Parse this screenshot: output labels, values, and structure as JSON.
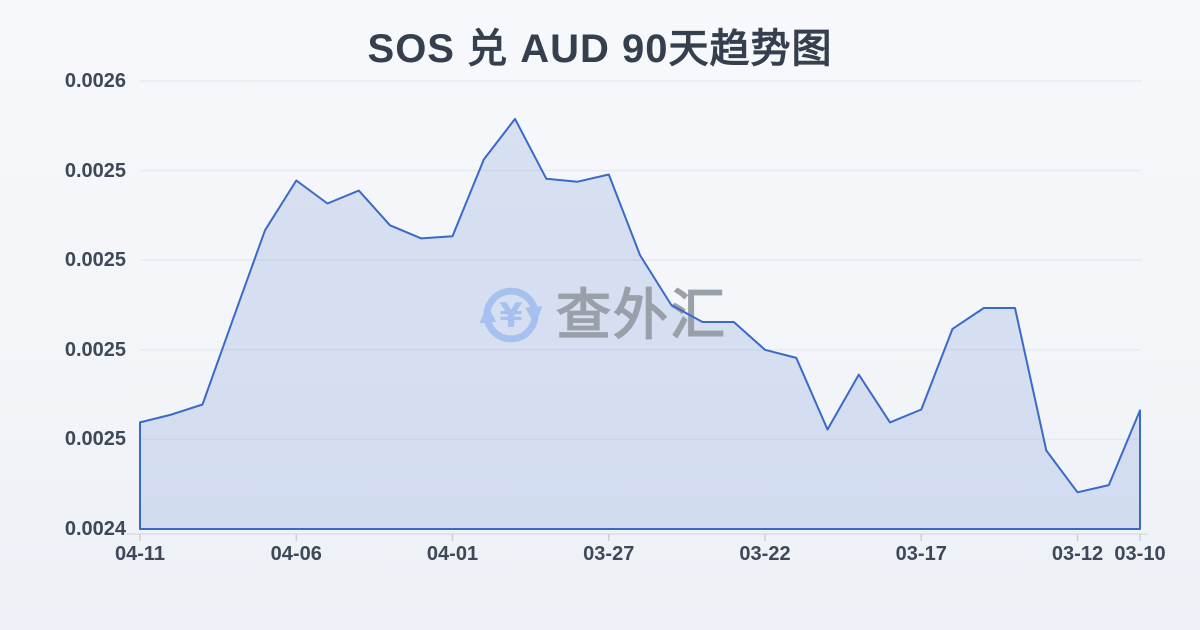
{
  "title": "SOS 兑 AUD 90天趋势图",
  "watermark": {
    "text": "查外汇",
    "icon": "currency-exchange-refresh-icon",
    "icon_symbol": "¥",
    "icon_color": "#a6c1ef",
    "text_color": "#99a0aa"
  },
  "colors": {
    "background_top": "#f7f8fb",
    "background_bottom": "#edf0f6",
    "title_text": "#353f4d",
    "axis_label_text": "#3e4856",
    "line": "#3a6ac8",
    "area_fill": "rgba(60,104,197,0.16)",
    "gridline": "#e6e9ef",
    "axis_line": "#dcdfe6",
    "tick_mark": "#c9ced6"
  },
  "chart_data": {
    "type": "area",
    "title": "SOS 兑 AUD 90天趋势图",
    "xlabel": "",
    "ylabel": "",
    "grid": true,
    "legend": "none",
    "x_reversed_chronology": true,
    "x": [
      "04-11",
      "04-10",
      "04-09",
      "04-08",
      "04-07",
      "04-06",
      "04-05",
      "04-04",
      "04-03",
      "04-02",
      "04-01",
      "03-31",
      "03-30",
      "03-29",
      "03-28",
      "03-27",
      "03-26",
      "03-25",
      "03-24",
      "03-23",
      "03-22",
      "03-21",
      "03-20",
      "03-19",
      "03-18",
      "03-17",
      "03-16",
      "03-15",
      "03-14",
      "03-13",
      "03-12",
      "03-11",
      "03-10"
    ],
    "values": [
      0.0024657,
      0.0024683,
      0.0024717,
      0.002501,
      0.00253,
      0.0025467,
      0.002539,
      0.0025433,
      0.0025317,
      0.0025273,
      0.002528,
      0.0025537,
      0.0025673,
      0.0025473,
      0.0025463,
      0.0025487,
      0.0025217,
      0.002505,
      0.0024993,
      0.0024993,
      0.00249,
      0.0024873,
      0.0024633,
      0.0024817,
      0.0024657,
      0.00247,
      0.002497,
      0.002504,
      0.002504,
      0.0024563,
      0.0024423,
      0.0024447,
      0.0024697
    ],
    "ylim": [
      0.00243,
      0.00258
    ],
    "y_tick_values": [
      0.00258,
      0.00255,
      0.00252,
      0.00249,
      0.00246,
      0.00243
    ],
    "y_tick_labels": [
      "0.0026",
      "0.0025",
      "0.0025",
      "0.0025",
      "0.0025",
      "0.0024"
    ],
    "x_tick_indices": [
      0,
      5,
      10,
      15,
      20,
      25,
      30,
      32
    ],
    "x_tick_labels": [
      "04-11",
      "04-06",
      "04-01",
      "03-27",
      "03-22",
      "03-17",
      "03-12",
      "03-10"
    ]
  }
}
